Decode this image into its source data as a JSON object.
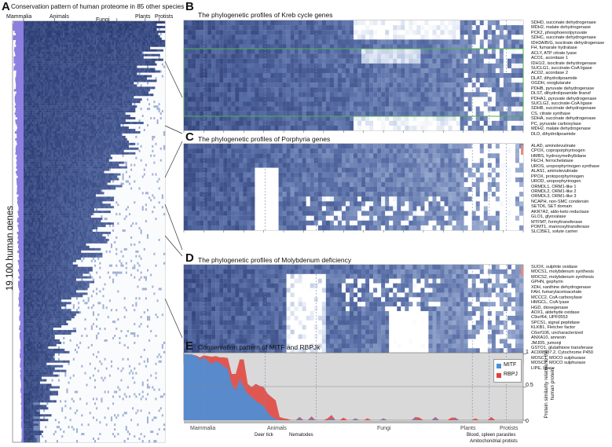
{
  "panel_a": {
    "letter": "A",
    "title": "Conservation pattern of human proteome in 85 other species",
    "groups": [
      "Mammalia",
      "Animals",
      "Fungi",
      "Plants",
      "Protists"
    ],
    "ylabel": "19 100 human genes"
  },
  "panel_b": {
    "letter": "B",
    "title": "The phylogenetic profiles of Kreb cycle genes",
    "genes": [
      "SDHD, succinate dehydrogenase",
      "MDH2, malate dehydrogenase",
      "PCK2, phosphoenolpyruvate",
      "SDHC, succinate dehydrogenase",
      "IDH3A/B/G, isocitrate dehydrogenase",
      "FH, fumarate hydratase",
      "ACLY, ATP citrate lyase",
      "ACO1, aconitase 1",
      "IDH1/2, isocitrate dehydrogenase",
      "SUCLG1, succinate-CoA ligase",
      "ACO2, aconitase 2",
      "DLAT, dihydrolipoamide",
      "OGDH, oxoglutarate",
      "PDHB, pyruvate dehydrogenase",
      "DLST, dihydrolipoamide ltransf",
      "PDHA1, pyruvate dehydrogenase",
      "SUCLG2, succinate-CoA ligase",
      "SDHB, succinate dehydrogenase",
      "CS, citrate synthase",
      "SDHA, succinate dehydrogenase",
      "PC, pyruvate carboxylase",
      "MDH2, malate dehydrogenase",
      "DLD, dihydrolipoamide"
    ]
  },
  "panel_c": {
    "letter": "C",
    "title": "The phylogenetic profiles of Porphyria genes",
    "genes": [
      "ALAD, aminolevulinate",
      "CPOX, coproporphyrinogen",
      "HMBS, hydroxymethylbilane",
      "FECH, ferrochelatase",
      "UROS, uroporphyrinogen synthase",
      "ALAS1, aminolevulinate",
      "PPOX, protoporphyrinogen",
      "UROD, uroporphyrinogen",
      "ORMDL1, ORM1-like 1",
      "ORMDL2, ORM1-like 2",
      "ORMDL3, ORM1-like 3",
      "NCAPH, non-SMC condensin",
      "SETD6, SET domain",
      "AKR7A2, aldo-keto reductase",
      "GLO1, glyoxalase",
      "MTFMT, formyltransferase",
      "POMT1, mannosyltransferase",
      "SLC35E1, solute carrier"
    ]
  },
  "panel_d": {
    "letter": "D",
    "title": "The phylogenetic profiles of Molybdenum deficiency",
    "genes": [
      "SUOX, sulphite oxidase",
      "MOCS1, molybdenum synthesis",
      "MOCS2, molybdenum synthesis",
      "GPHN, gephyrin",
      "XDH, xanthine dehydrogenase",
      "FAH, fumarylacetoacetate",
      "MCCC2, CoA carboxylase",
      "HMGCL, CoA lyase",
      "HGD, dioxegenase",
      "AOX1, aldehyde oxidase",
      "C9orf64, UPF0553",
      "SPCS1, signal peptidase",
      "KLKB1, Fletcher factor",
      "C6orf106, uncharacterized",
      "ANXA10, annexin",
      "JMJD5, jumonji",
      "GSTO1, glutathione transferase",
      "AC008537.2, Cytochrome P450",
      "MOSC1, MOCO sulphurase",
      "MOSC2, MOCO sulphurase",
      "LIPE, lipase"
    ]
  },
  "panel_e": {
    "letter": "E",
    "title": "Conservation pattern of MITF and RBPJk",
    "ylabel": "Protein similarity relative to the human protein",
    "yticks": [
      "1",
      "0.5",
      "0"
    ],
    "groups_bottom": [
      "Mammalia",
      "Animals",
      "Fungi",
      "Plants",
      "Protists"
    ],
    "callouts": [
      "Deer tick",
      "Nematodes",
      "Blood, spleen parasites",
      "Amitochondrial protists"
    ],
    "legend": [
      {
        "name": "MITF",
        "color": "#4a90d9"
      },
      {
        "name": "RBPJ",
        "color": "#e0403a"
      }
    ]
  },
  "chart_data": {
    "type": "area",
    "title": "Conservation pattern of MITF and RBPJk",
    "ylabel": "Protein similarity relative to the human protein",
    "ylim": [
      0,
      1
    ],
    "x_count": 86,
    "series": [
      {
        "name": "MITF",
        "color": "#4a90d9",
        "values": [
          1,
          1,
          1,
          0.97,
          0.92,
          0.95,
          0.9,
          0.85,
          0.9,
          0.86,
          0.82,
          0.78,
          0.55,
          0.45,
          0.62,
          0.5,
          0.4,
          0.35,
          0.3,
          0.25,
          0.22,
          0.12,
          0.05,
          0.02,
          0,
          0,
          0,
          0,
          0,
          0.03,
          0,
          0,
          0.03,
          0,
          0,
          0,
          0,
          0.03,
          0,
          0,
          0,
          0,
          0,
          0.02,
          0,
          0,
          0,
          0,
          0,
          0,
          0.02,
          0,
          0,
          0,
          0,
          0,
          0,
          0,
          0.03,
          0,
          0,
          0,
          0,
          0.03,
          0,
          0,
          0,
          0,
          0.02,
          0,
          0,
          0,
          0,
          0,
          0,
          0,
          0,
          0,
          0,
          0,
          0,
          0,
          0,
          0,
          0,
          0
        ]
      },
      {
        "name": "RBPJ",
        "color": "#e0403a",
        "values": [
          1,
          1,
          0.99,
          0.98,
          0.95,
          0.98,
          0.97,
          0.96,
          0.97,
          0.95,
          0.95,
          0.94,
          0.7,
          0.7,
          0.92,
          0.92,
          0.55,
          0.5,
          0.55,
          0.52,
          0.5,
          0.4,
          0.35,
          0.3,
          0.05,
          0.03,
          0.02,
          0,
          0,
          0.05,
          0,
          0,
          0.06,
          0,
          0,
          0,
          0.03,
          0.08,
          0,
          0,
          0.04,
          0,
          0,
          0.03,
          0,
          0,
          0.03,
          0,
          0,
          0,
          0.03,
          0,
          0,
          0,
          0,
          0,
          0,
          0,
          0.05,
          0.04,
          0,
          0,
          0,
          0.05,
          0,
          0,
          0,
          0.04,
          0.04,
          0,
          0,
          0,
          0,
          0.03,
          0,
          0,
          0,
          0.05,
          0,
          0,
          0,
          0,
          0,
          0,
          0,
          0
        ]
      }
    ]
  }
}
